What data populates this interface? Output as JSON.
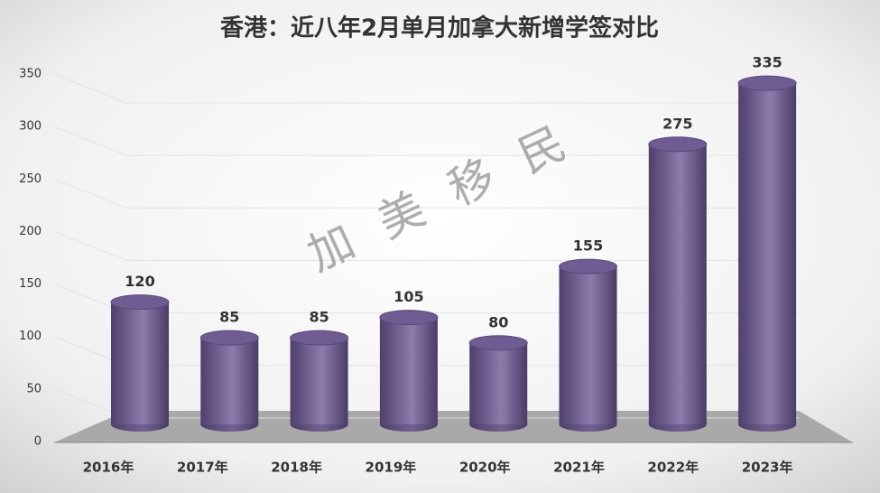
{
  "chart_data": {
    "type": "bar",
    "title": "香港：近八年2月单月加拿大新增学签对比",
    "watermark": "加 美 移 民",
    "categories": [
      "2016年",
      "2017年",
      "2018年",
      "2019年",
      "2020年",
      "2021年",
      "2022年",
      "2023年"
    ],
    "values": [
      120,
      85,
      85,
      105,
      80,
      155,
      275,
      335
    ],
    "color": "#6e5c92",
    "ylim": [
      0,
      350
    ],
    "yticks": [
      0,
      50,
      100,
      150,
      200,
      250,
      300,
      350
    ],
    "grid": true
  }
}
